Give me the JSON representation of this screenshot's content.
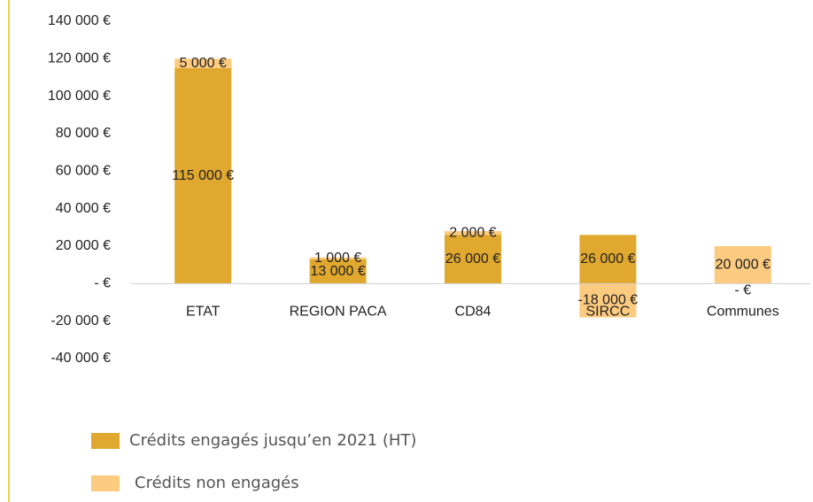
{
  "chart_data": {
    "type": "stacked_bar",
    "categories": [
      "ETAT",
      "REGION PACA",
      "CD84",
      "SIRCC",
      "Communes"
    ],
    "series": [
      {
        "name": "Crédits engagés jusqu’en 2021 (HT)",
        "color": "#e0a82e",
        "values": [
          115000,
          13000,
          26000,
          26000,
          0
        ],
        "value_labels": [
          "115 000 €",
          "13 000 €",
          "26 000 €",
          "26 000 €",
          "-   €"
        ]
      },
      {
        "name": "Crédits non engagés",
        "color": "#fdcb80",
        "values": [
          5000,
          1000,
          2000,
          -18000,
          20000
        ],
        "value_labels": [
          "5 000 €",
          "1 000 €",
          "2 000 €",
          "-18 000 €",
          "20 000 €"
        ]
      }
    ],
    "ylim": [
      -40000,
      140000
    ],
    "yticks": [
      {
        "value": -40000,
        "label": "-40 000 €"
      },
      {
        "value": -20000,
        "label": "-20 000 €"
      },
      {
        "value": 0,
        "label": "-   €"
      },
      {
        "value": 20000,
        "label": "20 000 €"
      },
      {
        "value": 40000,
        "label": "40 000 €"
      },
      {
        "value": 60000,
        "label": "60 000 €"
      },
      {
        "value": 80000,
        "label": "80 000 €"
      },
      {
        "value": 100000,
        "label": "100 000 €"
      },
      {
        "value": 120000,
        "label": "120 000 €"
      },
      {
        "value": 140000,
        "label": "140 000 €"
      }
    ],
    "legend": "bottom-left"
  }
}
